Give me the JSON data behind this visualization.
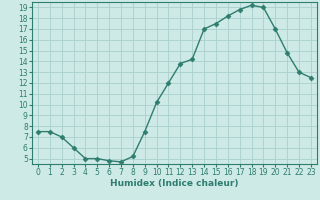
{
  "x": [
    0,
    1,
    2,
    3,
    4,
    5,
    6,
    7,
    8,
    9,
    10,
    11,
    12,
    13,
    14,
    15,
    16,
    17,
    18,
    19,
    20,
    21,
    22,
    23
  ],
  "y": [
    7.5,
    7.5,
    7.0,
    6.0,
    5.0,
    5.0,
    4.8,
    4.7,
    5.2,
    7.5,
    10.2,
    12.0,
    13.8,
    14.2,
    17.0,
    17.5,
    18.2,
    18.8,
    19.2,
    19.0,
    17.0,
    14.8,
    13.0,
    12.5
  ],
  "line_color": "#2e7d6e",
  "marker_color": "#2e7d6e",
  "bg_color": "#ceeae6",
  "grid_color": "#aacfcc",
  "xlabel": "Humidex (Indice chaleur)",
  "xlim": [
    -0.5,
    23.5
  ],
  "ylim": [
    4.5,
    19.5
  ],
  "yticks": [
    5,
    6,
    7,
    8,
    9,
    10,
    11,
    12,
    13,
    14,
    15,
    16,
    17,
    18,
    19
  ],
  "xticks": [
    0,
    1,
    2,
    3,
    4,
    5,
    6,
    7,
    8,
    9,
    10,
    11,
    12,
    13,
    14,
    15,
    16,
    17,
    18,
    19,
    20,
    21,
    22,
    23
  ],
  "tick_fontsize": 5.5,
  "xlabel_fontsize": 6.5
}
